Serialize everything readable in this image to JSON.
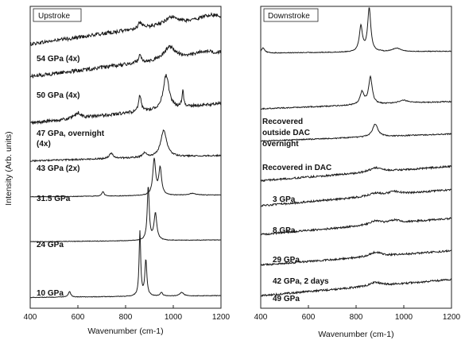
{
  "y_axis_label": "Intensity (Arb. units)",
  "chart_data": [
    {
      "type": "line",
      "panel_title": "Upstroke",
      "xlabel": "Wavenumber (cm-1)",
      "xlim": [
        400,
        1200
      ],
      "x_ticks": [
        400,
        600,
        800,
        1000,
        1200
      ],
      "y_ticks_shown": false,
      "series": [
        {
          "label": "54 GPa (4x)",
          "offset": 7.35,
          "slope": 0.75,
          "noise": 0.05,
          "peaks": [
            [
              860,
              0.15,
              10
            ],
            [
              990,
              0.2,
              30
            ],
            [
              1150,
              0.1,
              40
            ]
          ]
        },
        {
          "label": "50 GPa (4x)",
          "offset": 6.45,
          "slope": 0.65,
          "noise": 0.05,
          "peaks": [
            [
              860,
              0.2,
              8
            ],
            [
              985,
              0.35,
              28
            ],
            [
              1130,
              0.1,
              40
            ]
          ]
        },
        {
          "label": "47 GPa, overnight (4x)",
          "offset": 5.15,
          "slope": 0.55,
          "noise": 0.045,
          "peaks": [
            [
              860,
              0.45,
              6
            ],
            [
              970,
              0.95,
              14
            ],
            [
              1040,
              0.45,
              4
            ],
            [
              600,
              0.15,
              15
            ]
          ]
        },
        {
          "label": "43 GPa (2x)",
          "offset": 4.1,
          "slope": 0.15,
          "noise": 0.02,
          "peaks": [
            [
              740,
              0.15,
              10
            ],
            [
              960,
              0.75,
              15
            ],
            [
              880,
              0.12,
              10
            ]
          ]
        },
        {
          "label": "31.5 GPa",
          "offset": 3.1,
          "slope": 0.05,
          "noise": 0.008,
          "peaks": [
            [
              705,
              0.12,
              6
            ],
            [
              920,
              1.0,
              7
            ],
            [
              945,
              0.75,
              7
            ],
            [
              1080,
              0.05,
              20
            ]
          ]
        },
        {
          "label": "24 GPa",
          "offset": 1.85,
          "slope": 0.05,
          "noise": 0.008,
          "peaks": [
            [
              895,
              1.5,
              5
            ],
            [
              925,
              0.75,
              7
            ]
          ]
        },
        {
          "label": "10 GPa",
          "offset": 0.3,
          "slope": 0.05,
          "noise": 0.008,
          "peaks": [
            [
              565,
              0.15,
              6
            ],
            [
              860,
              1.8,
              4
            ],
            [
              885,
              1.0,
              5
            ],
            [
              950,
              0.1,
              6
            ],
            [
              1035,
              0.1,
              10
            ]
          ]
        }
      ]
    },
    {
      "type": "line",
      "panel_title": "Downstroke",
      "xlabel": "Wavenumber (cm-1)",
      "xlim": [
        400,
        1200
      ],
      "x_ticks": [
        400,
        600,
        800,
        1000,
        1200
      ],
      "y_ticks_shown": false,
      "series": [
        {
          "label": "",
          "offset": 7.1,
          "slope": 0.05,
          "noise": 0.01,
          "peaks": [
            [
              410,
              0.15,
              8
            ],
            [
              820,
              0.7,
              8
            ],
            [
              855,
              1.2,
              8
            ],
            [
              970,
              0.1,
              20
            ]
          ]
        },
        {
          "label": "Recovered outside DAC overnight",
          "offset": 5.55,
          "slope": 0.2,
          "noise": 0.015,
          "peaks": [
            [
              825,
              0.35,
              10
            ],
            [
              860,
              0.75,
              9
            ],
            [
              1000,
              0.08,
              30
            ]
          ]
        },
        {
          "label": "Recovered in DAC",
          "offset": 4.65,
          "slope": 0.2,
          "noise": 0.015,
          "peaks": [
            [
              880,
              0.35,
              14
            ]
          ]
        },
        {
          "label": "3 GPa",
          "offset": 3.55,
          "slope": 0.4,
          "noise": 0.025,
          "peaks": [
            [
              880,
              0.12,
              30
            ]
          ]
        },
        {
          "label": "8 GPa",
          "offset": 2.85,
          "slope": 0.45,
          "noise": 0.025,
          "peaks": [
            [
              880,
              0.08,
              30
            ],
            [
              960,
              0.08,
              30
            ]
          ]
        },
        {
          "label": "29 GPa",
          "offset": 2.05,
          "slope": 0.45,
          "noise": 0.025,
          "peaks": [
            [
              880,
              0.1,
              30
            ],
            [
              960,
              0.08,
              30
            ]
          ]
        },
        {
          "label": "42 GPa, 2 days",
          "offset": 1.2,
          "slope": 0.4,
          "noise": 0.025,
          "peaks": [
            [
              880,
              0.12,
              30
            ]
          ]
        },
        {
          "label": "49 GPa",
          "offset": 0.35,
          "slope": 0.45,
          "noise": 0.025,
          "peaks": [
            [
              880,
              0.1,
              30
            ]
          ]
        }
      ]
    }
  ]
}
